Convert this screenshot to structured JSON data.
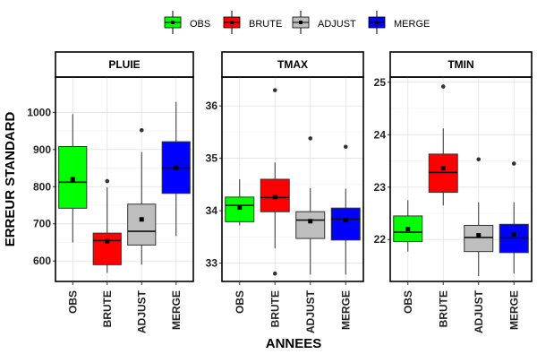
{
  "chart_data": {
    "type": "box",
    "ylabel": "ERREUR STANDARD",
    "xlabel": "ANNEES",
    "categories": [
      "OBS",
      "BRUTE",
      "ADJUST",
      "MERGE"
    ],
    "legend": {
      "placement": "top",
      "items": [
        {
          "name": "OBS",
          "color": "#00ff00"
        },
        {
          "name": "BRUTE",
          "color": "#ff0000"
        },
        {
          "name": "ADJUST",
          "color": "#bebebe"
        },
        {
          "name": "MERGE",
          "color": "#0000ff"
        }
      ]
    },
    "panels": [
      {
        "title": "PLUIE",
        "ylim": [
          545,
          1095
        ],
        "yticks": [
          600,
          700,
          800,
          900,
          1000
        ],
        "boxes": [
          {
            "category": "OBS",
            "whisker_low": 650,
            "q1": 742,
            "median": 812,
            "q3": 908,
            "whisker_high": 995,
            "mean": 820,
            "outliers": []
          },
          {
            "category": "BRUTE",
            "whisker_low": 568,
            "q1": 590,
            "median": 655,
            "q3": 675,
            "whisker_high": 798,
            "mean": 653,
            "outliers": [
              815
            ]
          },
          {
            "category": "ADJUST",
            "whisker_low": 590,
            "q1": 643,
            "median": 680,
            "q3": 753,
            "whisker_high": 893,
            "mean": 712,
            "outliers": [
              952
            ]
          },
          {
            "category": "MERGE",
            "whisker_low": 667,
            "q1": 782,
            "median": 850,
            "q3": 921,
            "whisker_high": 1028,
            "mean": 851,
            "outliers": []
          }
        ]
      },
      {
        "title": "TMAX",
        "ylim": [
          32.65,
          36.55
        ],
        "yticks": [
          33,
          34,
          35,
          36
        ],
        "boxes": [
          {
            "category": "OBS",
            "whisker_low": 33.72,
            "q1": 33.79,
            "median": 34.1,
            "q3": 34.26,
            "whisker_high": 34.6,
            "mean": 34.06,
            "outliers": []
          },
          {
            "category": "BRUTE",
            "whisker_low": 33.28,
            "q1": 33.98,
            "median": 34.25,
            "q3": 34.6,
            "whisker_high": 34.92,
            "mean": 34.26,
            "outliers": [
              36.3,
              32.8
            ]
          },
          {
            "category": "ADJUST",
            "whisker_low": 32.78,
            "q1": 33.47,
            "median": 33.82,
            "q3": 33.98,
            "whisker_high": 34.43,
            "mean": 33.8,
            "outliers": [
              35.38
            ]
          },
          {
            "category": "MERGE",
            "whisker_low": 32.78,
            "q1": 33.44,
            "median": 33.84,
            "q3": 34.05,
            "whisker_high": 34.42,
            "mean": 33.82,
            "outliers": [
              35.22
            ]
          }
        ]
      },
      {
        "title": "TMIN",
        "ylim": [
          21.2,
          25.1
        ],
        "yticks": [
          22,
          23,
          24,
          25
        ],
        "boxes": [
          {
            "category": "OBS",
            "whisker_low": 21.77,
            "q1": 21.96,
            "median": 22.14,
            "q3": 22.45,
            "whisker_high": 22.75,
            "mean": 22.2,
            "outliers": []
          },
          {
            "category": "BRUTE",
            "whisker_low": 22.65,
            "q1": 22.9,
            "median": 23.28,
            "q3": 23.63,
            "whisker_high": 24.12,
            "mean": 23.36,
            "outliers": [
              24.92
            ]
          },
          {
            "category": "ADJUST",
            "whisker_low": 21.3,
            "q1": 21.77,
            "median": 22.04,
            "q3": 22.27,
            "whisker_high": 22.71,
            "mean": 22.08,
            "outliers": [
              23.53
            ]
          },
          {
            "category": "MERGE",
            "whisker_low": 21.35,
            "q1": 21.75,
            "median": 22.03,
            "q3": 22.29,
            "whisker_high": 22.71,
            "mean": 22.1,
            "outliers": [
              23.45
            ]
          }
        ]
      }
    ]
  }
}
